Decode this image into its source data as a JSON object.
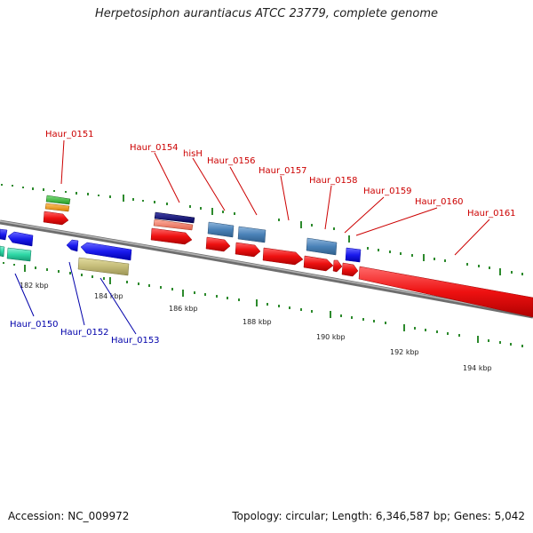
{
  "title": "Herpetosiphon aurantiacus ATCC 23779, complete genome",
  "footer": {
    "accession": "Accession: NC_009972",
    "topology": "Topology: circular; Length: 6,346,587 bp; Genes: 5,042"
  },
  "colors": {
    "forward_label": "#cc0000",
    "reverse_label": "#0000aa",
    "backbone": "#8a8a8a",
    "tick": "#2d8a2d",
    "forward_cds": "#ee1111",
    "reverse_cds": "#1111ee",
    "steelblue_feature": "#4a82b8"
  },
  "ticks": [
    "182 kbp",
    "184 kbp",
    "186 kbp",
    "188 kbp",
    "190 kbp",
    "192 kbp",
    "194 kbp"
  ],
  "labels": {
    "forward": [
      "Haur_0151",
      "Haur_0154",
      "hisH",
      "Haur_0156",
      "Haur_0157",
      "Haur_0158",
      "Haur_0159",
      "Haur_0160",
      "Haur_0161"
    ],
    "reverse": [
      "Haur_0150",
      "Haur_0152",
      "Haur_0153"
    ]
  }
}
